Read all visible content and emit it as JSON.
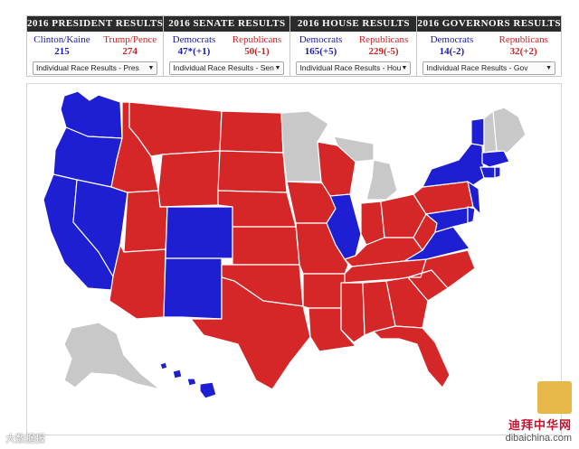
{
  "panels": [
    {
      "title": "2016 PRESIDENT RESULTS",
      "dem_label": "Clinton/Kaine",
      "dem_value": "215",
      "rep_label": "Trump/Pence",
      "rep_value": "274",
      "select_value": "Individual Race Results - Pres"
    },
    {
      "title": "2016 SENATE RESULTS",
      "dem_label": "Democrats",
      "dem_value": "47*(+1)",
      "rep_label": "Republicans",
      "rep_value": "50(-1)",
      "select_value": "Individual Race Results - Sen"
    },
    {
      "title": "2016 HOUSE RESULTS",
      "dem_label": "Democrats",
      "dem_value": "165(+5)",
      "rep_label": "Republicans",
      "rep_value": "229(-5)",
      "select_value": "Individual Race Results - Hou"
    },
    {
      "title": "2016 GOVERNORS RESULTS",
      "dem_label": "Democrats",
      "dem_value": "14(-2)",
      "rep_label": "Republicans",
      "rep_value": "32(+2)",
      "select_value": "Individual Race Results - Gov"
    }
  ],
  "colors": {
    "democrat": "#1e1ed2",
    "republican": "#d62728",
    "undecided": "#c8c8c8"
  },
  "watermark": {
    "left": "大数据报",
    "right_cn": "迪拜中华网",
    "right_url": "dibaichina.com"
  }
}
